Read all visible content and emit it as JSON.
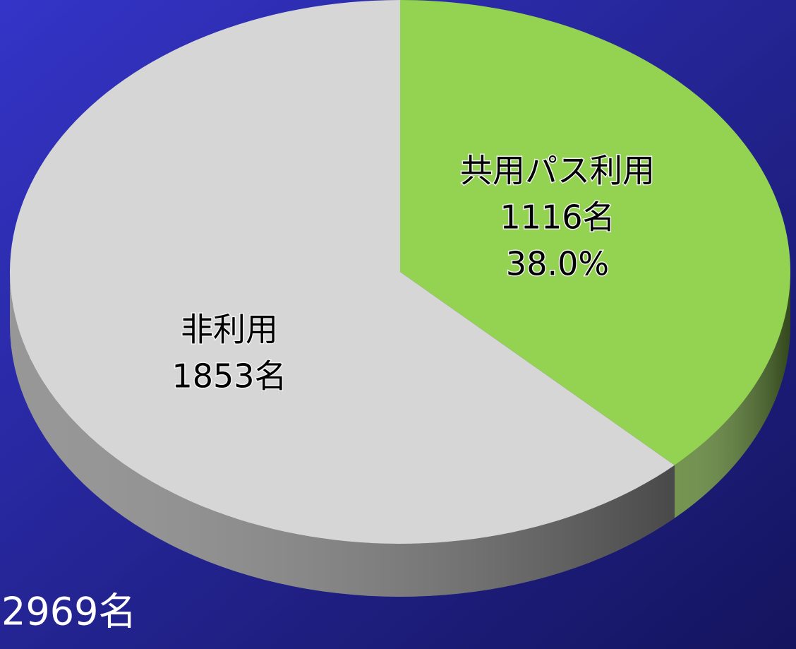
{
  "chart_data": {
    "type": "pie",
    "categories": [
      "共用パス利用",
      "非利用"
    ],
    "values": [
      1116,
      1853
    ],
    "value_labels": [
      "1116名",
      "1853名"
    ],
    "percent_labels": [
      "38.0%",
      null
    ],
    "colors": [
      "#94d251",
      "#d6d6d6"
    ],
    "total_label": "2969名"
  }
}
